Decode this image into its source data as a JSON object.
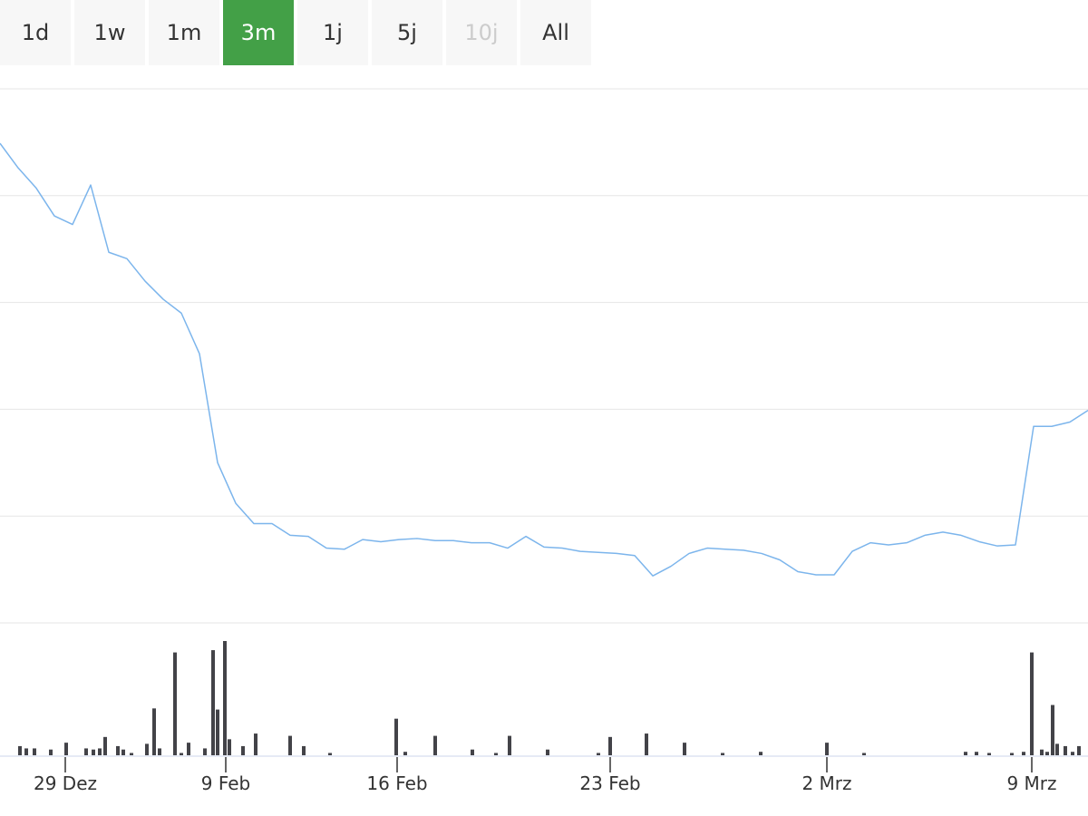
{
  "range_buttons": [
    "1d",
    "1w",
    "1m",
    "3m",
    "1j",
    "5j",
    "10j",
    "All"
  ],
  "selected_button": 3,
  "disabled_button": 6,
  "chart_data": [
    {
      "type": "line",
      "color": "#7cb5ec",
      "grid": true,
      "xlim": [
        0,
        60
      ],
      "ylim": [
        0,
        5
      ],
      "xticks": [
        {
          "value": 3.6,
          "label": "29 Dez"
        },
        {
          "value": 12.45,
          "label": "9 Feb"
        },
        {
          "value": 21.9,
          "label": "16 Feb"
        },
        {
          "value": 33.65,
          "label": "23 Feb"
        },
        {
          "value": 45.6,
          "label": "2 Mrz"
        },
        {
          "value": 56.9,
          "label": "9 Mrz"
        }
      ],
      "x": [
        0,
        1,
        2,
        3,
        4,
        5,
        6,
        7,
        8,
        9,
        10,
        11,
        12,
        13,
        14,
        15,
        16,
        17,
        18,
        19,
        20,
        21,
        22,
        23,
        24,
        25,
        26,
        27,
        28,
        29,
        30,
        31,
        32,
        33,
        34,
        35,
        36,
        37,
        38,
        39,
        40,
        41,
        42,
        43,
        44,
        45,
        46,
        47,
        48,
        49,
        50,
        51,
        52,
        53,
        54,
        55,
        56,
        57,
        58,
        59,
        60
      ],
      "values": [
        4.49,
        4.26,
        4.07,
        3.81,
        3.73,
        4.1,
        3.47,
        3.41,
        3.2,
        3.03,
        2.9,
        2.52,
        1.5,
        1.12,
        0.93,
        0.93,
        0.82,
        0.81,
        0.7,
        0.69,
        0.78,
        0.76,
        0.78,
        0.79,
        0.77,
        0.77,
        0.75,
        0.75,
        0.7,
        0.81,
        0.71,
        0.7,
        0.67,
        0.66,
        0.65,
        0.63,
        0.44,
        0.53,
        0.65,
        0.7,
        0.69,
        0.68,
        0.65,
        0.59,
        0.48,
        0.45,
        0.45,
        0.67,
        0.75,
        0.73,
        0.75,
        0.82,
        0.85,
        0.82,
        0.76,
        0.72,
        0.73,
        1.84,
        1.84,
        1.88,
        1.99
      ]
    },
    {
      "type": "bar",
      "color": "#434348",
      "xlim": [
        0,
        60
      ],
      "ylim": [
        0,
        10
      ],
      "x": [
        1.1,
        1.45,
        1.9,
        2.8,
        3.65,
        4.75,
        5.15,
        5.5,
        5.8,
        6.5,
        6.8,
        7.25,
        8.1,
        8.5,
        8.8,
        9.65,
        10,
        10.4,
        11.3,
        11.75,
        12,
        12.4,
        12.65,
        13.4,
        14.1,
        16,
        16.75,
        18.2,
        21.85,
        22.35,
        24,
        26.05,
        27.35,
        28.1,
        30.2,
        33,
        33.65,
        35.65,
        37.75,
        39.85,
        41.95,
        45.6,
        47.65,
        53.25,
        53.85,
        54.55,
        55.8,
        56.45,
        56.9,
        57.45,
        57.75,
        58.05,
        58.3,
        58.75,
        59.15,
        59.5
      ],
      "values": [
        0.8,
        0.6,
        0.6,
        0.5,
        1.1,
        0.6,
        0.5,
        0.6,
        1.6,
        0.8,
        0.5,
        0.2,
        1.0,
        4.1,
        0.6,
        9.0,
        0.2,
        1.1,
        0.6,
        9.2,
        4.0,
        10.0,
        1.4,
        0.8,
        1.9,
        1.7,
        0.8,
        0.2,
        3.2,
        0.3,
        1.7,
        0.5,
        0.2,
        1.7,
        0.5,
        0.2,
        1.6,
        1.9,
        1.1,
        0.2,
        0.3,
        1.1,
        0.2,
        0.3,
        0.3,
        0.2,
        0.2,
        0.3,
        9.0,
        0.5,
        0.3,
        4.4,
        1.0,
        0.8,
        0.3,
        0.8
      ]
    }
  ]
}
